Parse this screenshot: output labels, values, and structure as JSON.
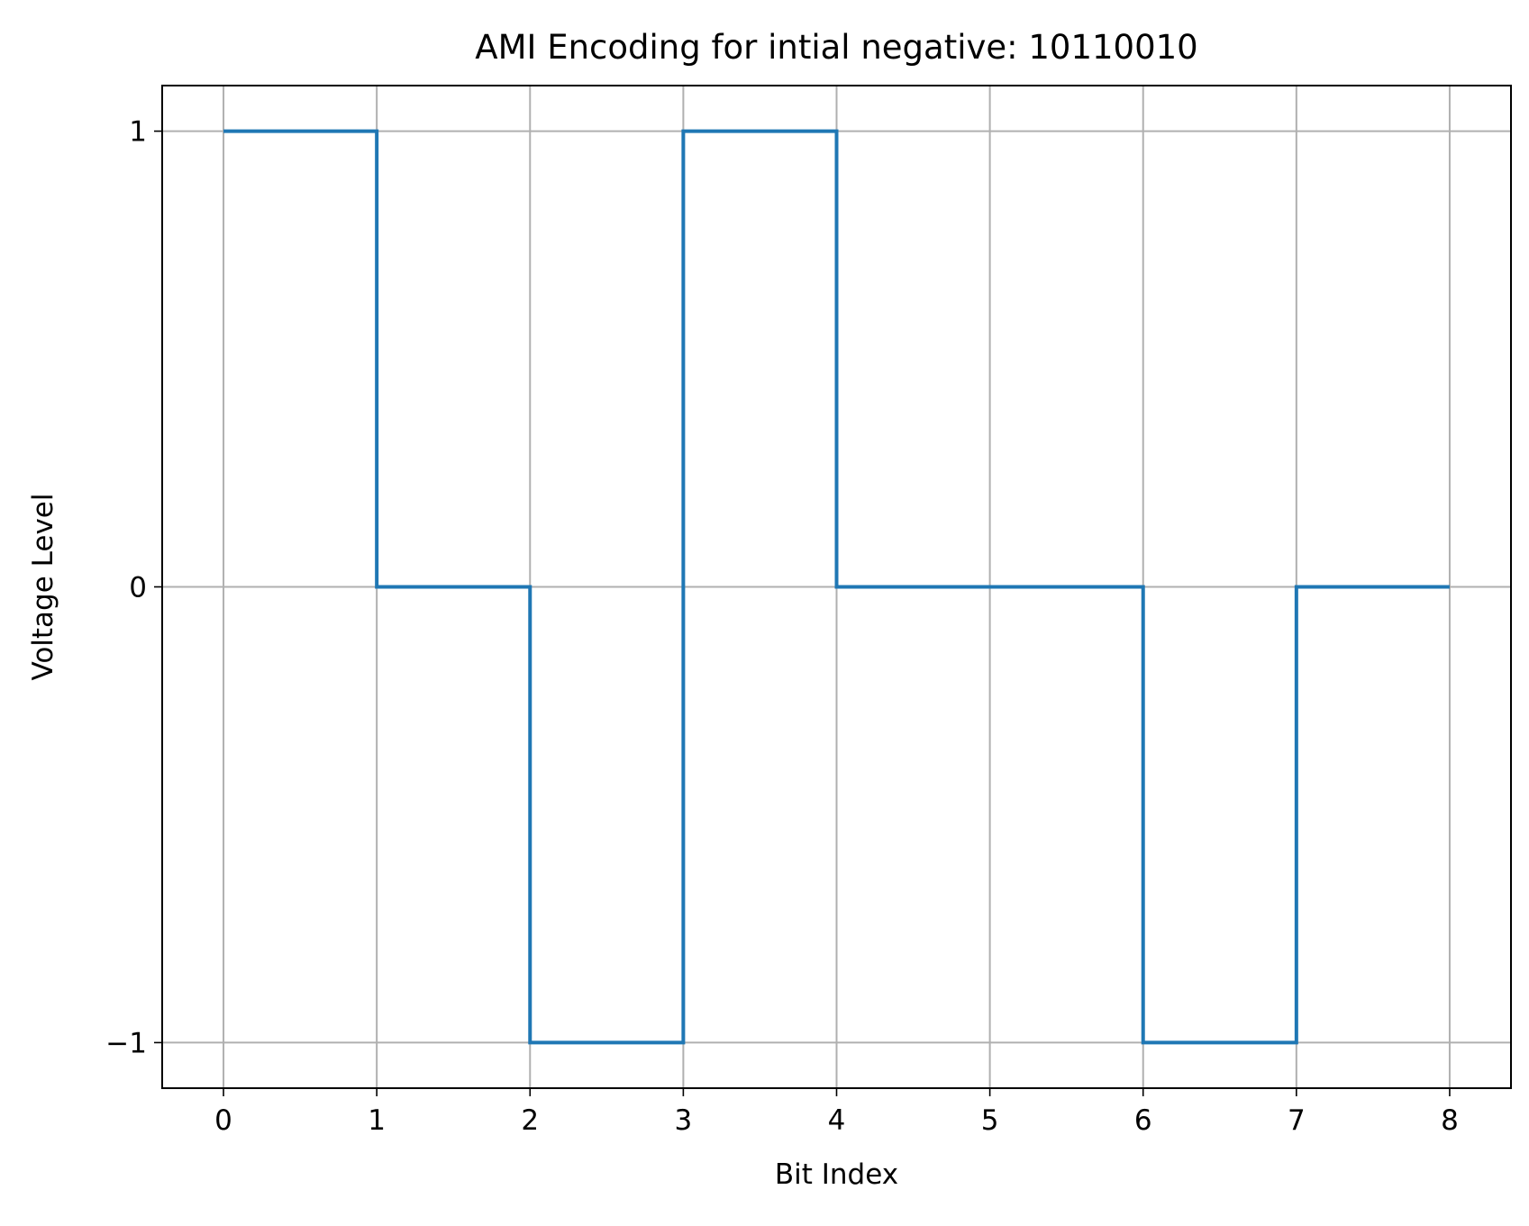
{
  "chart_data": {
    "type": "line",
    "title": "AMI Encoding for intial negative: 10110010",
    "xlabel": "Bit Index",
    "ylabel": "Voltage Level",
    "step": "post",
    "x": [
      0,
      1,
      2,
      3,
      4,
      5,
      6,
      7,
      8
    ],
    "y": [
      1,
      0,
      -1,
      1,
      0,
      0,
      -1,
      0,
      0
    ],
    "xlim": [
      -0.4,
      8.4
    ],
    "ylim": [
      -1.1,
      1.1
    ],
    "xticks": [
      0,
      1,
      2,
      3,
      4,
      5,
      6,
      7,
      8
    ],
    "yticks": [
      -1,
      0,
      1
    ],
    "ytick_labels": [
      "−1",
      "0",
      "1"
    ],
    "grid": true,
    "line_color": "#1f77b4",
    "grid_color": "#b0b0b0"
  }
}
